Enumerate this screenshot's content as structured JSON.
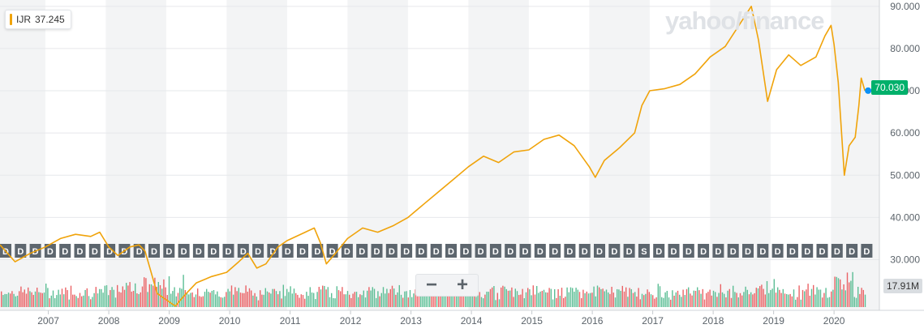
{
  "legend": {
    "symbol": "IJR",
    "value": "37.245",
    "color": "#f0a30a"
  },
  "watermark": "yahoo/finance",
  "zoom": {
    "minus": "−",
    "plus": "+"
  },
  "price_badge": {
    "value": "70.030",
    "color": "#00b06b"
  },
  "volume_badge": "17.91M",
  "dividend_marker_label": "D",
  "split_marker_label": "S",
  "colors": {
    "line": "#f0a30a",
    "up_volume": "#3fb383",
    "down_volume": "#e8484b",
    "band": "#f3f4f5",
    "marker_bg": "#5d666e",
    "last_dot": "#0b90f5"
  },
  "chart_data": {
    "type": "line",
    "title": "",
    "series": [
      {
        "name": "IJR",
        "points": [
          [
            2006.25,
            33.5
          ],
          [
            2006.5,
            29.5
          ],
          [
            2006.75,
            31.5
          ],
          [
            2007.0,
            33.0
          ],
          [
            2007.25,
            35.0
          ],
          [
            2007.5,
            36.0
          ],
          [
            2007.75,
            35.5
          ],
          [
            2007.9,
            36.5
          ],
          [
            2008.05,
            33.0
          ],
          [
            2008.2,
            31.0
          ],
          [
            2008.4,
            33.0
          ],
          [
            2008.55,
            33.5
          ],
          [
            2008.65,
            32.0
          ],
          [
            2008.75,
            27.0
          ],
          [
            2008.85,
            22.0
          ],
          [
            2009.0,
            20.5
          ],
          [
            2009.15,
            19.0
          ],
          [
            2009.3,
            21.5
          ],
          [
            2009.5,
            24.5
          ],
          [
            2009.75,
            26.0
          ],
          [
            2010.0,
            27.0
          ],
          [
            2010.2,
            29.5
          ],
          [
            2010.35,
            31.5
          ],
          [
            2010.5,
            28.0
          ],
          [
            2010.65,
            29.0
          ],
          [
            2010.85,
            33.0
          ],
          [
            2011.0,
            34.5
          ],
          [
            2011.3,
            36.5
          ],
          [
            2011.45,
            37.5
          ],
          [
            2011.55,
            34.0
          ],
          [
            2011.65,
            29.0
          ],
          [
            2011.8,
            31.5
          ],
          [
            2012.0,
            35.0
          ],
          [
            2012.25,
            37.5
          ],
          [
            2012.5,
            36.5
          ],
          [
            2012.75,
            38.0
          ],
          [
            2013.0,
            40.0
          ],
          [
            2013.25,
            43.0
          ],
          [
            2013.5,
            46.0
          ],
          [
            2013.75,
            49.0
          ],
          [
            2014.0,
            52.0
          ],
          [
            2014.25,
            54.5
          ],
          [
            2014.5,
            53.0
          ],
          [
            2014.75,
            55.5
          ],
          [
            2015.0,
            56.0
          ],
          [
            2015.25,
            58.5
          ],
          [
            2015.5,
            59.5
          ],
          [
            2015.75,
            57.0
          ],
          [
            2016.0,
            52.0
          ],
          [
            2016.1,
            49.5
          ],
          [
            2016.25,
            53.5
          ],
          [
            2016.5,
            56.5
          ],
          [
            2016.75,
            60.0
          ],
          [
            2016.87,
            66.5
          ],
          [
            2017.0,
            70.0
          ],
          [
            2017.25,
            70.5
          ],
          [
            2017.5,
            71.5
          ],
          [
            2017.75,
            74.0
          ],
          [
            2018.0,
            78.0
          ],
          [
            2018.25,
            80.5
          ],
          [
            2018.5,
            86.0
          ],
          [
            2018.68,
            90.0
          ],
          [
            2018.8,
            82.0
          ],
          [
            2018.95,
            67.5
          ],
          [
            2019.1,
            75.0
          ],
          [
            2019.3,
            78.5
          ],
          [
            2019.5,
            76.0
          ],
          [
            2019.75,
            78.0
          ],
          [
            2019.9,
            83.0
          ],
          [
            2020.0,
            85.5
          ],
          [
            2020.05,
            81.0
          ],
          [
            2020.12,
            72.0
          ],
          [
            2020.22,
            50.0
          ],
          [
            2020.3,
            57.0
          ],
          [
            2020.4,
            59.0
          ],
          [
            2020.46,
            66.5
          ],
          [
            2020.5,
            73.0
          ],
          [
            2020.56,
            70.03
          ]
        ]
      }
    ],
    "dividend_markers": 30,
    "split_markers": 1,
    "x_ticks": [
      "2007",
      "2008",
      "2009",
      "2010",
      "2011",
      "2012",
      "2013",
      "2014",
      "2015",
      "2016",
      "2017",
      "2018",
      "2019",
      "2020"
    ],
    "y_ticks": [
      "30.000",
      "40.000",
      "50.000",
      "60.000",
      "70.000",
      "80.000",
      "90.000"
    ],
    "ylim": [
      18,
      91.5
    ],
    "xlim": [
      2006.25,
      2020.8
    ],
    "grid": true,
    "legend_position": "top-left",
    "last_value": 70.03
  }
}
